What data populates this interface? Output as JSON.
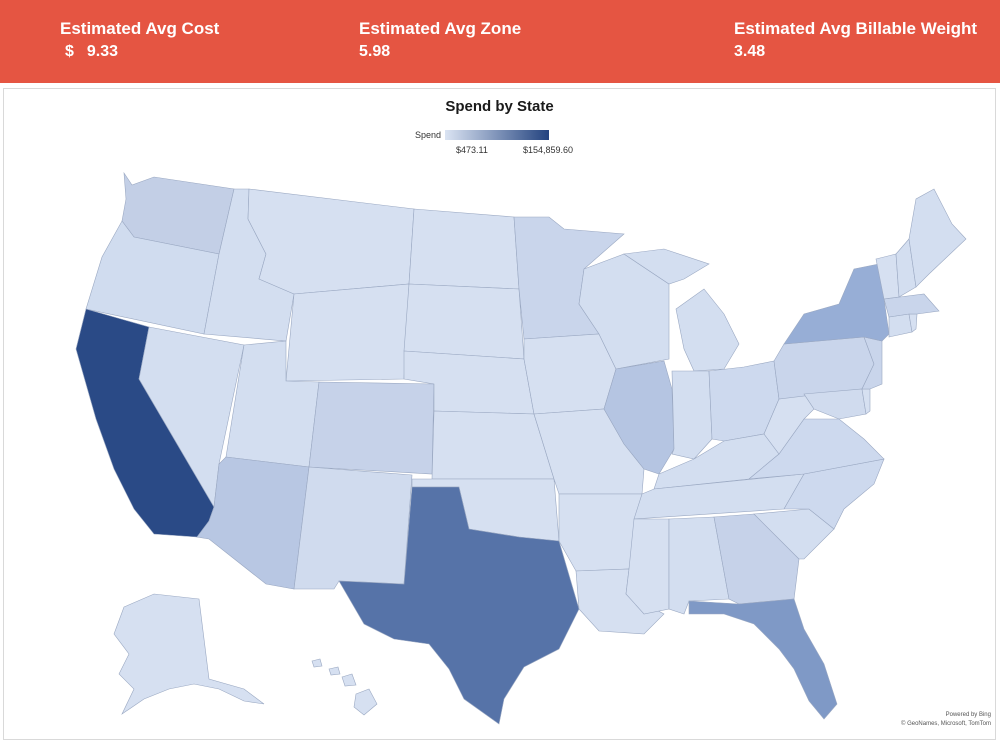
{
  "kpis": {
    "cost_label": "Estimated Avg Cost",
    "cost_currency": "$",
    "cost_value": "9.33",
    "zone_label": "Estimated Avg Zone",
    "zone_value": "5.98",
    "weight_label": "Estimated Avg Billable Weight",
    "weight_value": "3.48"
  },
  "colors": {
    "kpi_bar": "#e55542",
    "low": "#dbe4f3",
    "high": "#23437f"
  },
  "map": {
    "title": "Spend by State",
    "legend_title": "Spend",
    "legend_min": "$473.11",
    "legend_max": "$154,859.60",
    "credit_line1": "Powered by Bing",
    "credit_line2": "© GeoNames, Microsoft, TomTom"
  }
}
